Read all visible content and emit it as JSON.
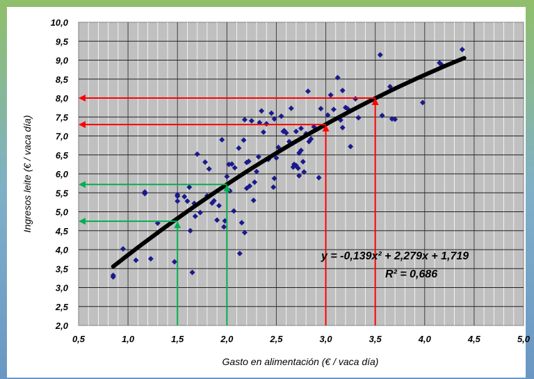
{
  "chart_data": {
    "type": "scatter",
    "xlabel": "Gasto en alimentación (€ / vaca día)",
    "ylabel": "Ingresos leite (€ / vaca día)",
    "xlim": [
      0.5,
      5.0
    ],
    "ylim": [
      2.0,
      10.0
    ],
    "x_ticks": [
      "0,5",
      "1,0",
      "1,5",
      "2,0",
      "2,5",
      "3,0",
      "3,5",
      "4,0",
      "4,5",
      "5,0"
    ],
    "y_ticks": [
      "2,0",
      "2,5",
      "3,0",
      "3,5",
      "4,0",
      "4,5",
      "5,0",
      "5,5",
      "6,0",
      "6,5",
      "7,0",
      "7,5",
      "8,0",
      "8,5",
      "9,0",
      "9,5",
      "10,0"
    ],
    "grid": true,
    "colors": {
      "points": "#1a1a8c",
      "trend": "#000000",
      "red_guides": "#ff0000",
      "green_guides": "#00b050",
      "plot_bg": "#c0c0c0"
    },
    "series": [
      {
        "type": "scatter",
        "points": [
          [
            0.85,
            3.28
          ],
          [
            0.85,
            3.32
          ],
          [
            0.95,
            4.02
          ],
          [
            1.08,
            3.72
          ],
          [
            1.17,
            5.52
          ],
          [
            1.17,
            5.48
          ],
          [
            1.23,
            3.76
          ],
          [
            1.3,
            4.7
          ],
          [
            1.47,
            3.68
          ],
          [
            1.5,
            5.41
          ],
          [
            1.5,
            5.45
          ],
          [
            1.5,
            5.28
          ],
          [
            1.57,
            5.4
          ],
          [
            1.6,
            5.28
          ],
          [
            1.62,
            5.65
          ],
          [
            1.63,
            4.5
          ],
          [
            1.65,
            3.4
          ],
          [
            1.67,
            5.22
          ],
          [
            1.68,
            4.88
          ],
          [
            1.7,
            6.52
          ],
          [
            1.73,
            4.98
          ],
          [
            1.78,
            6.31
          ],
          [
            1.8,
            5.42
          ],
          [
            1.82,
            6.13
          ],
          [
            1.85,
            5.23
          ],
          [
            1.87,
            5.29
          ],
          [
            1.9,
            4.78
          ],
          [
            1.92,
            5.16
          ],
          [
            1.95,
            6.9
          ],
          [
            1.97,
            4.6
          ],
          [
            1.98,
            4.76
          ],
          [
            2.0,
            5.93
          ],
          [
            2.02,
            6.25
          ],
          [
            2.03,
            5.55
          ],
          [
            2.05,
            6.26
          ],
          [
            2.07,
            5.02
          ],
          [
            2.08,
            6.16
          ],
          [
            2.12,
            6.68
          ],
          [
            2.13,
            3.9
          ],
          [
            2.15,
            4.71
          ],
          [
            2.17,
            6.89
          ],
          [
            2.18,
            7.43
          ],
          [
            2.18,
            4.45
          ],
          [
            2.2,
            6.3
          ],
          [
            2.2,
            5.62
          ],
          [
            2.22,
            6.33
          ],
          [
            2.23,
            5.68
          ],
          [
            2.25,
            7.4
          ],
          [
            2.27,
            5.3
          ],
          [
            2.28,
            5.78
          ],
          [
            2.3,
            6.06
          ],
          [
            2.32,
            6.45
          ],
          [
            2.33,
            7.35
          ],
          [
            2.35,
            7.66
          ],
          [
            2.37,
            7.1
          ],
          [
            2.4,
            7.32
          ],
          [
            2.42,
            6.38
          ],
          [
            2.45,
            7.6
          ],
          [
            2.47,
            5.65
          ],
          [
            2.48,
            5.88
          ],
          [
            2.48,
            7.45
          ],
          [
            2.5,
            6.42
          ],
          [
            2.52,
            6.7
          ],
          [
            2.55,
            7.52
          ],
          [
            2.57,
            7.12
          ],
          [
            2.58,
            7.14
          ],
          [
            2.6,
            7.08
          ],
          [
            2.63,
            6.85
          ],
          [
            2.65,
            7.73
          ],
          [
            2.67,
            6.18
          ],
          [
            2.68,
            6.25
          ],
          [
            2.7,
            7.12
          ],
          [
            2.7,
            6.22
          ],
          [
            2.72,
            6.15
          ],
          [
            2.73,
            5.95
          ],
          [
            2.73,
            6.55
          ],
          [
            2.75,
            6.62
          ],
          [
            2.75,
            7.2
          ],
          [
            2.77,
            6.32
          ],
          [
            2.78,
            6.05
          ],
          [
            2.8,
            7.06
          ],
          [
            2.82,
            8.18
          ],
          [
            2.83,
            6.85
          ],
          [
            2.85,
            6.92
          ],
          [
            2.88,
            7.24
          ],
          [
            2.93,
            5.9
          ],
          [
            2.95,
            7.72
          ],
          [
            3.02,
            7.55
          ],
          [
            3.05,
            8.08
          ],
          [
            3.08,
            7.7
          ],
          [
            3.12,
            8.54
          ],
          [
            3.15,
            7.42
          ],
          [
            3.17,
            7.22
          ],
          [
            3.17,
            8.2
          ],
          [
            3.2,
            7.75
          ],
          [
            3.22,
            7.72
          ],
          [
            3.25,
            6.72
          ],
          [
            3.3,
            7.98
          ],
          [
            3.33,
            7.48
          ],
          [
            3.55,
            9.14
          ],
          [
            3.57,
            7.54
          ],
          [
            3.65,
            8.3
          ],
          [
            3.67,
            7.45
          ],
          [
            3.7,
            7.44
          ],
          [
            3.98,
            7.88
          ],
          [
            4.15,
            8.93
          ],
          [
            4.17,
            8.88
          ],
          [
            4.38,
            9.28
          ]
        ]
      }
    ],
    "trendline": {
      "type": "polynomial",
      "coefficients": [
        -0.139,
        2.279,
        1.719
      ],
      "x_range": [
        0.85,
        4.4
      ]
    },
    "annotations": [
      {
        "kind": "guide",
        "color": "red",
        "x": 3.0,
        "y": 7.3
      },
      {
        "kind": "guide",
        "color": "red",
        "x": 3.5,
        "y": 8.0
      },
      {
        "kind": "guide",
        "color": "green",
        "x": 1.5,
        "y": 4.75
      },
      {
        "kind": "guide",
        "color": "green",
        "x": 2.0,
        "y": 5.72
      }
    ],
    "equation": "y = -0,139x² + 2,279x + 1,719",
    "r_squared": "R² = 0,686"
  }
}
